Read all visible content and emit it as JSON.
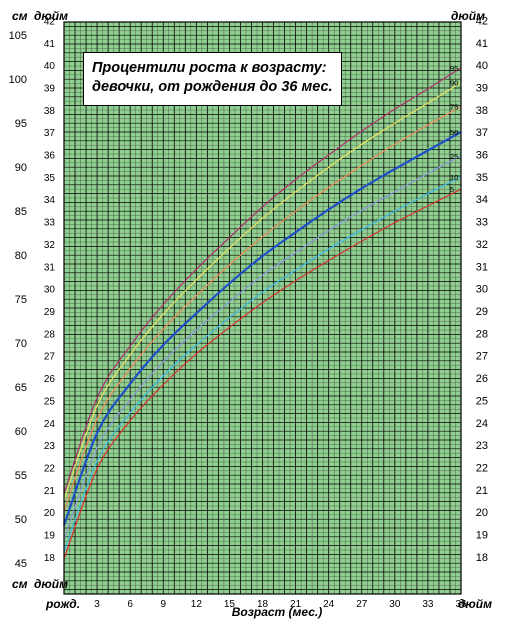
{
  "chart_data": {
    "type": "line",
    "title": "Процентили роста к возрасту: девочки, от рождения до 36 мес.",
    "xlabel": "Возраст (мес.)",
    "x_birth_label": "рожд.",
    "unit_labels": {
      "top_left": "см",
      "top_left_inch": "дюйм",
      "top_right": "дюйм",
      "bottom_left": "см",
      "bottom_left_inch": "дюйм",
      "bottom_right": "дюйм"
    },
    "xlim": [
      0,
      36
    ],
    "ylim_cm": [
      41.5,
      106.5
    ],
    "x_ticks": [
      3,
      6,
      9,
      12,
      15,
      18,
      21,
      24,
      27,
      30,
      33,
      36
    ],
    "cm_ticks": [
      45,
      50,
      55,
      60,
      65,
      70,
      75,
      80,
      85,
      90,
      95,
      100,
      105
    ],
    "inch_ticks": [
      18,
      19,
      20,
      21,
      22,
      23,
      24,
      25,
      26,
      27,
      28,
      29,
      30,
      31,
      32,
      33,
      34,
      35,
      36,
      37,
      38,
      39,
      40,
      41,
      42
    ],
    "grid": true,
    "x": [
      0,
      3,
      6,
      9,
      12,
      15,
      18,
      21,
      24,
      27,
      30,
      33,
      36
    ],
    "series": [
      {
        "name": "95",
        "color": "#b0306a",
        "values": [
          52.9,
          63.8,
          69.7,
          74.4,
          78.4,
          82.0,
          85.5,
          88.6,
          91.4,
          94.1,
          96.6,
          98.9,
          101.3
        ]
      },
      {
        "name": "90",
        "color": "#e8e060",
        "values": [
          52.2,
          62.9,
          68.7,
          73.3,
          77.2,
          80.8,
          84.2,
          87.2,
          90.0,
          92.6,
          95.0,
          97.3,
          99.6
        ]
      },
      {
        "name": "75",
        "color": "#f08a5a",
        "values": [
          50.9,
          61.4,
          67.1,
          71.6,
          75.4,
          78.9,
          82.1,
          85.0,
          87.7,
          90.2,
          92.6,
          94.8,
          96.9
        ]
      },
      {
        "name": "50",
        "color": "#2050c8",
        "values": [
          49.3,
          59.8,
          65.4,
          69.8,
          73.4,
          76.8,
          79.9,
          82.6,
          85.2,
          87.6,
          89.8,
          91.9,
          94.0
        ]
      },
      {
        "name": "25",
        "color": "#8a9ad8",
        "values": [
          47.7,
          58.1,
          63.6,
          67.9,
          71.5,
          74.7,
          77.7,
          80.3,
          82.8,
          85.1,
          87.2,
          89.3,
          91.3
        ]
      },
      {
        "name": "10",
        "color": "#40b8e8",
        "values": [
          46.3,
          56.6,
          62.1,
          66.3,
          69.8,
          72.9,
          75.8,
          78.3,
          80.7,
          82.9,
          85.0,
          87.0,
          88.9
        ]
      },
      {
        "name": "5",
        "color": "#d83030",
        "values": [
          45.5,
          55.7,
          61.2,
          65.3,
          68.8,
          71.8,
          74.6,
          77.1,
          79.4,
          81.6,
          83.7,
          85.6,
          87.5
        ]
      }
    ],
    "colors": {
      "background": "#8fcf8f",
      "grid_fine": "#333333",
      "grid_major": "#000000"
    }
  }
}
